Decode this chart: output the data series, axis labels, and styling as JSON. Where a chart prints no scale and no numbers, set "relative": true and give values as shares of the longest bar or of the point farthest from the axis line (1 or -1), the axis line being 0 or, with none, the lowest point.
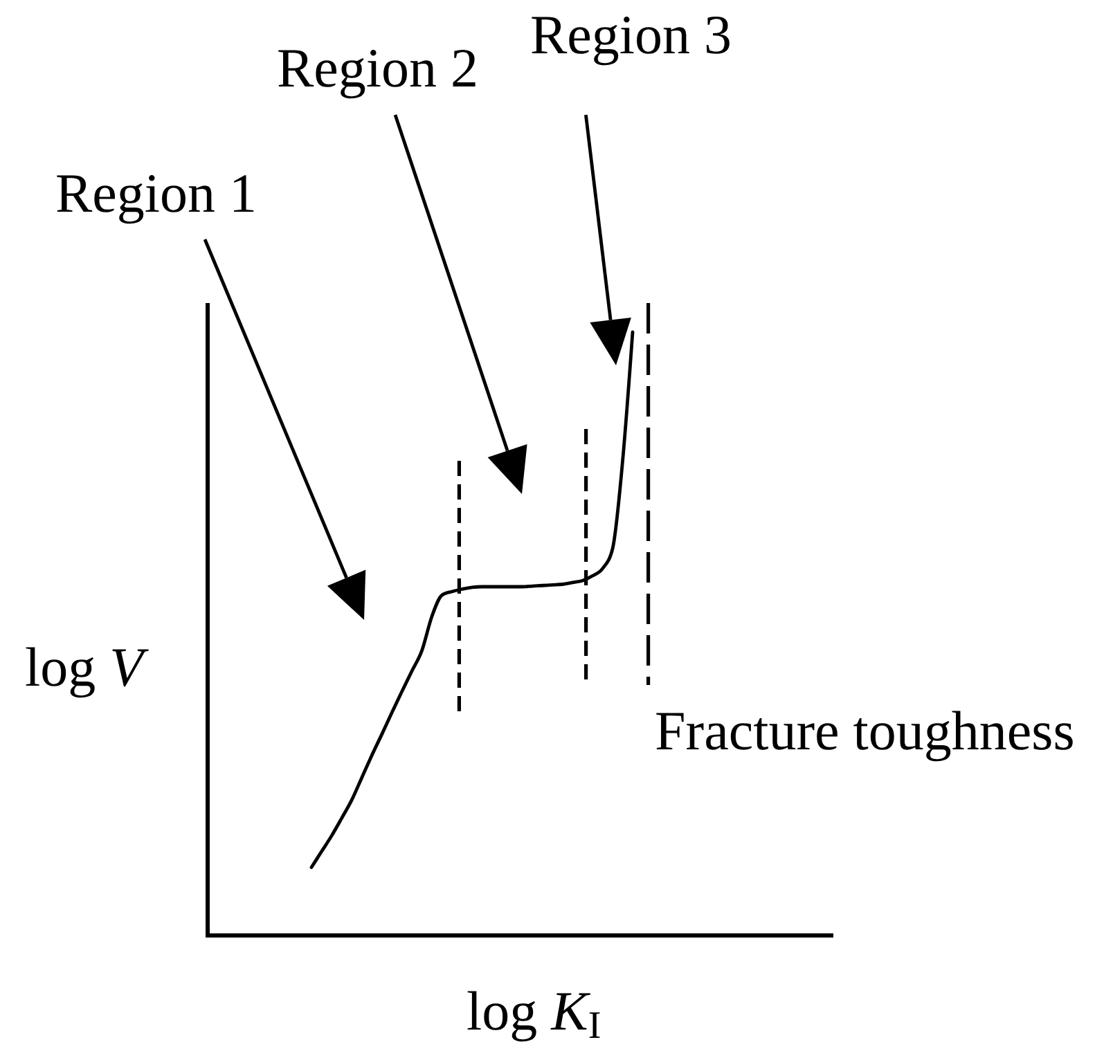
{
  "chart_data": {
    "type": "line",
    "relative": true,
    "xlabel": "log K$_{I}$",
    "ylabel": "log V",
    "categories": [
      null,
      null,
      null,
      null,
      null,
      null,
      null,
      null,
      null,
      null,
      null,
      null,
      null,
      null,
      null,
      null,
      null,
      null,
      null,
      null,
      null,
      null,
      null,
      null,
      null,
      null,
      null,
      null,
      null,
      null,
      null,
      null,
      null,
      null,
      null,
      null,
      null,
      null,
      null,
      null,
      null,
      null,
      null,
      null,
      null,
      null,
      null,
      null,
      null,
      null,
      null,
      null,
      null,
      null,
      null,
      null,
      null,
      null,
      null,
      null,
      null,
      null,
      null
    ],
    "values": [
      null,
      null,
      null,
      null,
      null,
      null,
      null,
      null,
      null,
      null,
      0.113,
      0.139,
      0.165,
      0.194,
      0.224,
      0.261,
      0.298,
      0.333,
      0.369,
      0.404,
      0.438,
      0.472,
      0.529,
      0.564,
      0.57,
      0.574,
      0.577,
      0.578,
      0.578,
      0.578,
      0.578,
      0.578,
      0.579,
      0.58,
      0.581,
      0.582,
      0.585,
      0.588,
      0.596,
      0.608,
      0.641,
      0.786,
      1,
      null,
      null,
      null,
      null,
      null,
      null,
      null,
      null,
      null,
      null,
      null,
      null,
      null,
      null,
      null,
      null,
      null,
      null,
      null,
      null
    ],
    "color": "#000000",
    "annotations": [
      "Region 1",
      "Region 2",
      "Region 3",
      "Fracture toughness"
    ]
  }
}
